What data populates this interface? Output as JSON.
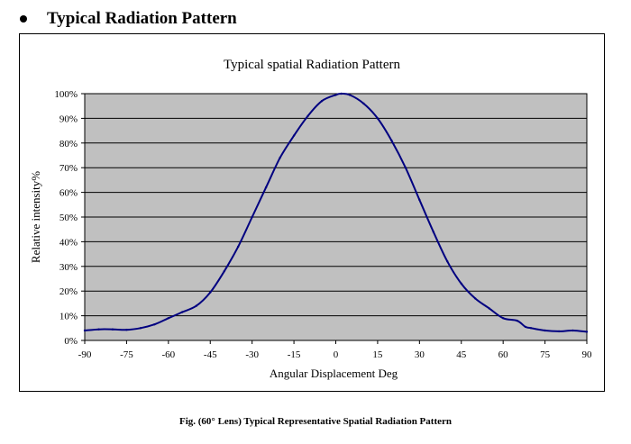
{
  "heading": {
    "text": "Typical Radiation Pattern"
  },
  "caption": {
    "text": "Fig. (60° Lens) Typical Representative Spatial Radiation Pattern"
  },
  "colors": {
    "plot_bg": "#c0c0c0",
    "line": "#000080",
    "grid": "#000000"
  },
  "chart_data": {
    "type": "line",
    "title": "Typical spatial Radiation Pattern",
    "xlabel": "Angular Displacement Deg",
    "ylabel": "Relative intensity%",
    "xlim": [
      -90,
      90
    ],
    "ylim": [
      0,
      100
    ],
    "grid": true,
    "legend": "none",
    "x_ticks": [
      -90,
      -75,
      -60,
      -45,
      -30,
      -15,
      0,
      15,
      30,
      45,
      60,
      75,
      90
    ],
    "x_tick_labels": [
      "-90",
      "-75",
      "-60",
      "-45",
      "-30",
      "-15",
      "0",
      "15",
      "30",
      "45",
      "60",
      "75",
      "90"
    ],
    "y_ticks": [
      0,
      10,
      20,
      30,
      40,
      50,
      60,
      70,
      80,
      90,
      100
    ],
    "y_tick_labels": [
      "0%",
      "10%",
      "20%",
      "30%",
      "40%",
      "50%",
      "60%",
      "70%",
      "80%",
      "90%",
      "100%"
    ],
    "series": [
      {
        "name": "Relative intensity",
        "x": [
          -90,
          -85,
          -80,
          -75,
          -70,
          -65,
          -60,
          -55,
          -50,
          -45,
          -40,
          -35,
          -30,
          -25,
          -20,
          -15,
          -10,
          -5,
          0,
          2,
          5,
          10,
          15,
          20,
          25,
          30,
          35,
          40,
          45,
          50,
          55,
          60,
          65,
          68,
          70,
          75,
          80,
          85,
          90
        ],
        "values": [
          4,
          4.5,
          4.5,
          4.3,
          5,
          6.5,
          9,
          11.5,
          14,
          19.5,
          28,
          38,
          50,
          62,
          74,
          83,
          91,
          97,
          99.5,
          100,
          99.5,
          96,
          90,
          81,
          70,
          57,
          44,
          32,
          23,
          17,
          13,
          9,
          8,
          5.5,
          5,
          4,
          3.7,
          4,
          3.5
        ]
      }
    ]
  }
}
